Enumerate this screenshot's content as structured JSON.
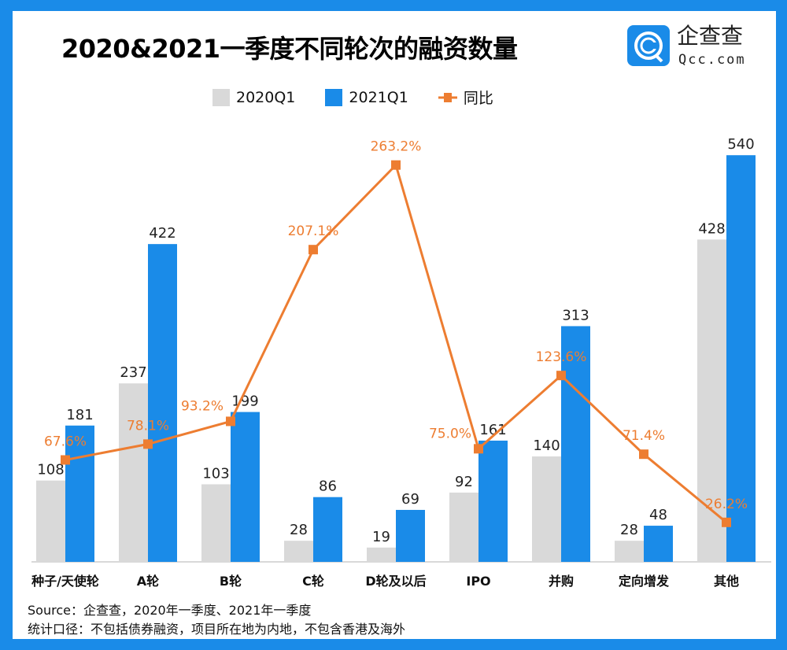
{
  "title": "2020&2021一季度不同轮次的融资数量",
  "logo": {
    "cn": "企查查",
    "en": "Qcc.com"
  },
  "colors": {
    "frame": "#1a8be8",
    "s2020": "#d9d9d9",
    "s2021": "#1a8be8",
    "yoy": "#ed7d31"
  },
  "chart_data": {
    "type": "bar+line",
    "title": "2020&2021一季度不同轮次的融资数量",
    "categories": [
      "种子/天使轮",
      "A轮",
      "B轮",
      "C轮",
      "D轮及以后",
      "IPO",
      "并购",
      "定向增发",
      "其他"
    ],
    "series": [
      {
        "name": "2020Q1",
        "type": "bar",
        "values": [
          108,
          237,
          103,
          28,
          19,
          92,
          140,
          28,
          428
        ],
        "labels": [
          "108",
          "237",
          "103",
          "28",
          "19",
          "92",
          "140",
          "28",
          "428"
        ]
      },
      {
        "name": "2021Q1",
        "type": "bar",
        "values": [
          181,
          422,
          199,
          86,
          69,
          161,
          313,
          48,
          540
        ],
        "labels": [
          "181",
          "422",
          "199",
          "86",
          "69",
          "161",
          "313",
          "48",
          "540"
        ]
      },
      {
        "name": "同比",
        "type": "line",
        "values": [
          67.6,
          78.1,
          93.2,
          207.1,
          263.2,
          75.0,
          123.6,
          71.4,
          26.2
        ],
        "labels": [
          "67.6%",
          "78.1%",
          "93.2%",
          "207.1%",
          "263.2%",
          "75.0%",
          "123.6%",
          "71.4%",
          "26.2%"
        ]
      }
    ],
    "legend": "top",
    "grid": false
  },
  "source": {
    "line1": "Source：企查查，2020年一季度、2021年一季度",
    "line2": "统计口径：不包括债券融资，项目所在地为内地，不包含香港及海外"
  }
}
